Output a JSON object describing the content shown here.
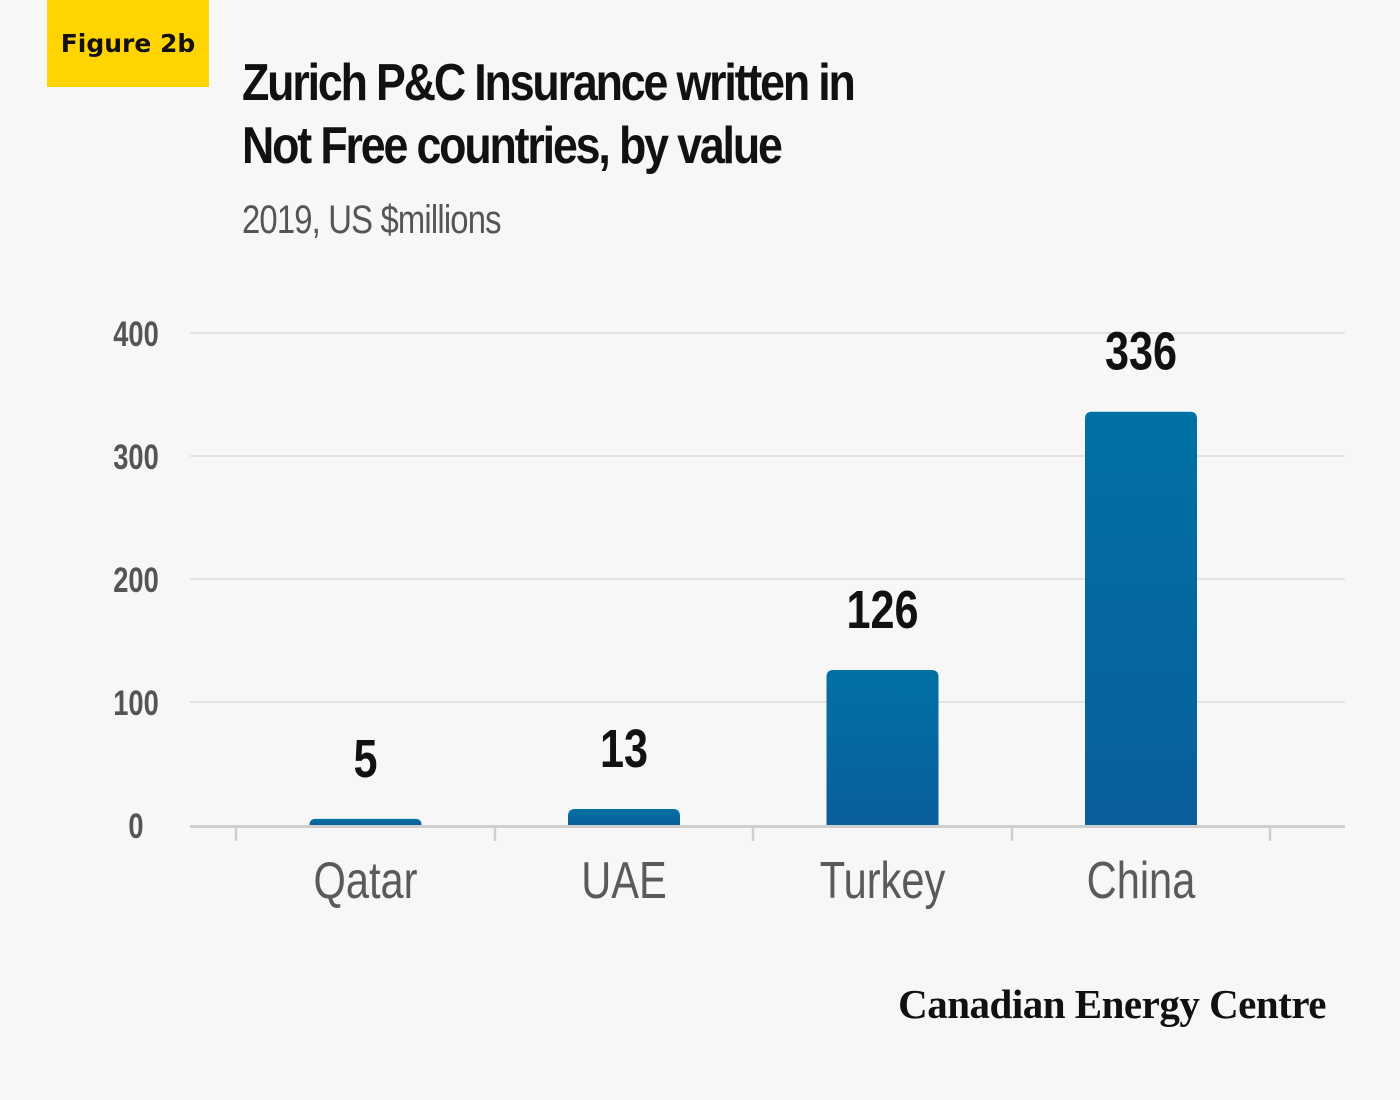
{
  "badge": "Figure 2b",
  "header": {
    "title_line1": "Zurich P&C Insurance written in",
    "title_line2": "Not Free countries, by value",
    "subtitle": "2019, US $millions"
  },
  "credit": "Canadian Energy Centre",
  "colors": {
    "bar": "#0071a4",
    "bar_dark": "#2a5fa0",
    "badge": "#ffd400",
    "grid": "#dcdcdc",
    "axis": "#cfcfcf"
  },
  "chart_data": {
    "type": "bar",
    "title": "Zurich P&C Insurance written in Not Free countries, by value",
    "subtitle": "2019, US $millions",
    "categories": [
      "Qatar",
      "UAE",
      "Turkey",
      "China"
    ],
    "values": [
      5,
      13,
      126,
      336
    ],
    "data_labels": [
      "5",
      "13",
      "126",
      "336"
    ],
    "yticks": [
      "0",
      "100",
      "200",
      "300",
      "400"
    ],
    "ylim": [
      0,
      400
    ],
    "grid": true,
    "legend": "none"
  }
}
